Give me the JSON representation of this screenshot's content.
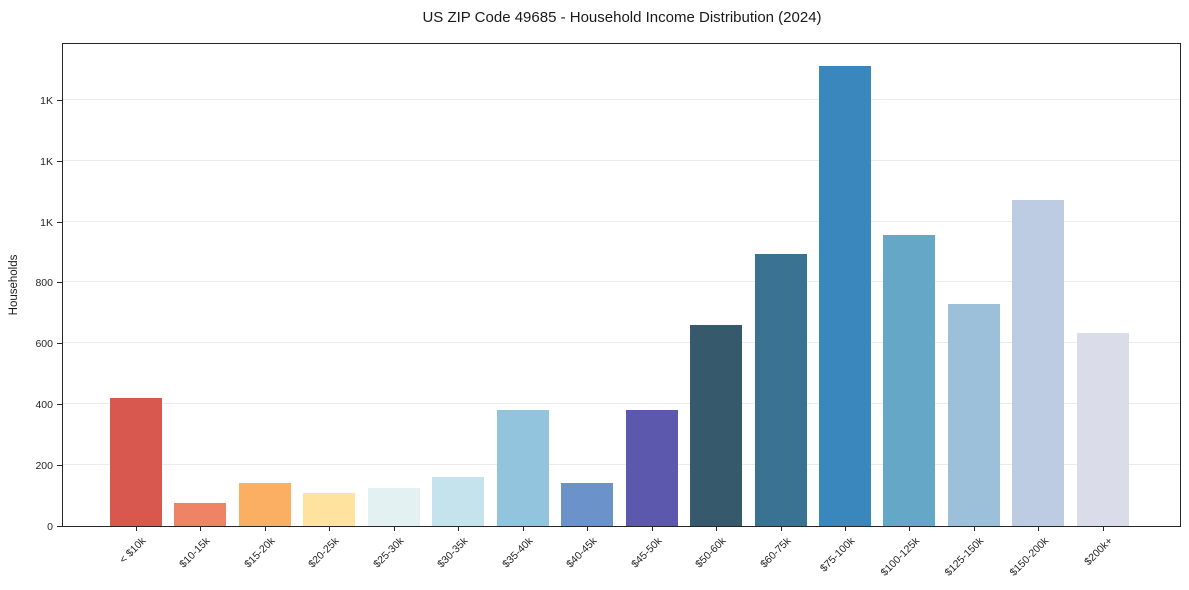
{
  "chart_data": {
    "type": "bar",
    "title": "US ZIP Code 49685 - Household Income Distribution (2024)",
    "xlabel": "",
    "ylabel": "Households",
    "categories": [
      "< $10k",
      "$10-15k",
      "$15-20k",
      "$20-25k",
      "$25-30k",
      "$30-35k",
      "$35-40k",
      "$40-45k",
      "$45-50k",
      "$50-60k",
      "$60-75k",
      "$75-100k",
      "$100-125k",
      "$125-150k",
      "$150-200k",
      "$200k+"
    ],
    "values": [
      420,
      75,
      140,
      110,
      125,
      160,
      380,
      140,
      380,
      660,
      895,
      1510,
      955,
      730,
      1070,
      635
    ],
    "bar_colors": [
      "#d85850",
      "#ef8366",
      "#fbaf63",
      "#fde39e",
      "#e4f1f2",
      "#c5e3ec",
      "#93c4de",
      "#6b93ca",
      "#5b58ae",
      "#36596c",
      "#3a7392",
      "#3a87bd",
      "#64a7c6",
      "#9dc0da",
      "#bdcbe3",
      "#dbdcea"
    ],
    "ylim": [
      0,
      1590
    ],
    "ytick_values": [
      0,
      200,
      400,
      600,
      800,
      1000,
      1200,
      1400
    ],
    "ytick_labels": [
      "0",
      "200",
      "400",
      "600",
      "800",
      "1K",
      "1K",
      "1K"
    ],
    "grid": "horizontal-only",
    "legend": "none",
    "background_color": "#ffffff",
    "spine_color": "#262626",
    "gridline_color": "#ebebeb"
  }
}
